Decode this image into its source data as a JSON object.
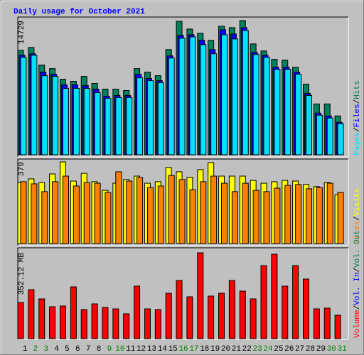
{
  "chart_data": [
    {
      "type": "bar",
      "title": "Daily usage for October 2021",
      "ylim": [
        0,
        14729
      ],
      "yticks": [
        14729
      ],
      "legend_separator": "/",
      "series": [
        {
          "name": "Pages",
          "color": "#00e0ff",
          "values": [
            10698,
            10930,
            8682,
            8605,
            7287,
            7287,
            7287,
            6822,
            6202,
            6279,
            6279,
            8450,
            8140,
            7907,
            10620,
            12791,
            12946,
            12093,
            11085,
            13178,
            12713,
            13644,
            11008,
            10698,
            9380,
            9380,
            8837,
            6512,
            4341,
            4031,
            3411
          ]
        },
        {
          "name": "Files",
          "color": "#0000ff",
          "values": [
            10930,
            11085,
            9070,
            8837,
            7674,
            7674,
            7597,
            7209,
            6434,
            6512,
            6512,
            8837,
            8372,
            8140,
            10853,
            13101,
            13178,
            12558,
            11550,
            13721,
            13256,
            13954,
            11240,
            10930,
            9612,
            9612,
            9070,
            6744,
            4573,
            4264,
            3566
          ]
        },
        {
          "name": "Hits",
          "color": "#00805c",
          "values": [
            11473,
            11783,
            9845,
            9457,
            8295,
            8062,
            8605,
            7830,
            7209,
            7209,
            7054,
            9457,
            9070,
            8682,
            11550,
            14650,
            13799,
            13333,
            12558,
            14109,
            13954,
            14729,
            12171,
            11395,
            10465,
            10388,
            9612,
            7752,
            5581,
            5581,
            4264
          ]
        }
      ]
    },
    {
      "type": "bar",
      "ylim": [
        0,
        379
      ],
      "yticks": [
        379
      ],
      "legend_separator": "/",
      "series": [
        {
          "name": "Sites",
          "color": "#ff8000",
          "values": [
            287,
            277,
            241,
            287,
            313,
            267,
            283,
            280,
            237,
            333,
            290,
            307,
            260,
            267,
            316,
            297,
            250,
            287,
            313,
            280,
            241,
            280,
            247,
            241,
            257,
            270,
            274,
            254,
            260,
            280,
            237
          ]
        },
        {
          "name": "Visits",
          "color": "#ffff00",
          "values": [
            283,
            300,
            283,
            323,
            379,
            290,
            326,
            287,
            247,
            280,
            297,
            313,
            280,
            287,
            353,
            333,
            307,
            343,
            376,
            313,
            313,
            313,
            293,
            280,
            287,
            293,
            290,
            274,
            264,
            283,
            227
          ]
        }
      ]
    },
    {
      "type": "bar",
      "ylim": [
        0,
        352.12
      ],
      "yticks": [
        {
          "value": 352.12,
          "label": "352.12 MB"
        }
      ],
      "legend_separator": "/",
      "categories": [
        "1",
        "2",
        "3",
        "4",
        "5",
        "6",
        "7",
        "8",
        "9",
        "10",
        "11",
        "12",
        "13",
        "14",
        "15",
        "16",
        "17",
        "18",
        "19",
        "20",
        "21",
        "22",
        "23",
        "24",
        "25",
        "26",
        "27",
        "28",
        "29",
        "30",
        "31"
      ],
      "category_colors": [
        "#000000",
        "#008000",
        "#008000",
        "#000000",
        "#000000",
        "#000000",
        "#000000",
        "#000000",
        "#008000",
        "#008000",
        "#000000",
        "#000000",
        "#000000",
        "#000000",
        "#000000",
        "#008000",
        "#008000",
        "#000000",
        "#000000",
        "#000000",
        "#000000",
        "#000000",
        "#008000",
        "#008000",
        "#000000",
        "#000000",
        "#000000",
        "#000000",
        "#000000",
        "#008000",
        "#008000"
      ],
      "series": [
        {
          "name": "Volume",
          "color": "#ff0000",
          "values": [
            148.4,
            200.8,
            163.0,
            131.0,
            133.9,
            212.4,
            119.3,
            142.6,
            128.0,
            122.2,
            101.9,
            215.3,
            122.2,
            119.3,
            186.2,
            238.6,
            171.7,
            352.12,
            174.6,
            186.2,
            238.6,
            195.0,
            163.0,
            299.7,
            346.3,
            215.3,
            299.7,
            244.4,
            122.2,
            125.1,
            96.0
          ]
        },
        {
          "name": "Vol. In",
          "color": "#0000ff"
        },
        {
          "name": "Vol. Out",
          "color": "#00805c"
        }
      ]
    }
  ]
}
